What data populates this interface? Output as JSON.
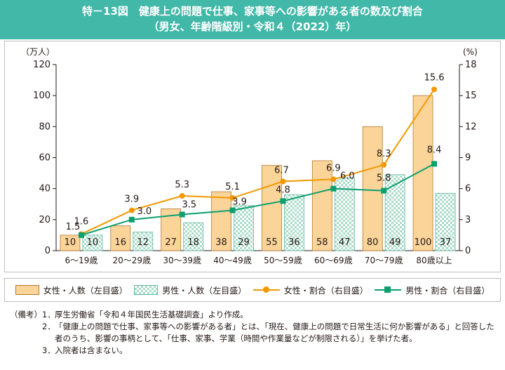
{
  "title": {
    "line1": "特－13図　健康上の問題で仕事、家事等への影響がある者の数及び割合",
    "line2": "（男女、年齢階級別・令和４（2022）年）"
  },
  "colors": {
    "female_bar": "#fbd49a",
    "female_bar_border": "#b07a30",
    "male_bar_a": "#a9dcc9",
    "male_bar_b": "#ffffff",
    "male_bar_border": "#62b7a3",
    "female_line": "#f39800",
    "male_line": "#0e9f6e",
    "title_band": "#41b8a8"
  },
  "chart_data": {
    "type": "bar",
    "categories": [
      "6～19歳",
      "20～29歳",
      "30～39歳",
      "40～49歳",
      "50～59歳",
      "60～69歳",
      "70～79歳",
      "80歳以上"
    ],
    "series": [
      {
        "name": "女性・人数（左目盛）",
        "kind": "bar",
        "axis": "left",
        "values": [
          10,
          16,
          27,
          38,
          55,
          58,
          80,
          100
        ]
      },
      {
        "name": "男性・人数（左目盛）",
        "kind": "bar",
        "axis": "left",
        "values": [
          10,
          12,
          18,
          29,
          36,
          47,
          49,
          37
        ]
      },
      {
        "name": "女性・割合（右目盛）",
        "kind": "line",
        "axis": "right",
        "values": [
          1.6,
          3.9,
          5.3,
          5.1,
          6.7,
          6.9,
          8.3,
          15.6
        ]
      },
      {
        "name": "男性・割合（右目盛）",
        "kind": "line",
        "axis": "right",
        "values": [
          1.5,
          3.0,
          3.5,
          3.9,
          4.8,
          6.0,
          5.8,
          8.4
        ]
      }
    ],
    "left_axis": {
      "unit": "（万人）",
      "ylim": [
        0,
        120
      ],
      "ticks": [
        0,
        20,
        40,
        60,
        80,
        100,
        120
      ]
    },
    "right_axis": {
      "unit": "(%)",
      "ylim": [
        0,
        18
      ],
      "ticks": [
        0,
        3,
        6,
        9,
        12,
        15,
        18
      ]
    },
    "bar_labels": {
      "female": [
        "10",
        "16",
        "27",
        "38",
        "55",
        "58",
        "80",
        "100"
      ],
      "male": [
        "10",
        "12",
        "18",
        "29",
        "36",
        "47",
        "49",
        "37"
      ]
    },
    "line_labels": {
      "female": [
        "1.6",
        "3.9",
        "5.3",
        "5.1",
        "6.7",
        "6.9",
        "8.3",
        "15.6"
      ],
      "male": [
        "1.5",
        "3.0",
        "3.5",
        "3.9",
        "4.8",
        "6.0",
        "5.8",
        "8.4"
      ]
    },
    "legend_position": "bottom"
  },
  "legend": {
    "female_bar": "女性・人数（左目盛）",
    "male_bar": "男性・人数（左目盛）",
    "female_line": "女性・割合（右目盛）",
    "male_line": "男性・割合（右目盛）"
  },
  "notes": {
    "head": "（備考）",
    "items": [
      {
        "num": "1．",
        "text": "厚生労働省「令和４年国民生活基礎調査」より作成。"
      },
      {
        "num": "2．",
        "text": "「健康上の問題で仕事、家事等への影響がある者」とは、「現在、健康上の問題で日常生活に何か影響がある」と回答した者のうち、影響の事柄として、「仕事、家事、学業（時間や作業量などが制限される）」を挙げた者。"
      },
      {
        "num": "3．",
        "text": "入院者は含まない。"
      }
    ]
  }
}
